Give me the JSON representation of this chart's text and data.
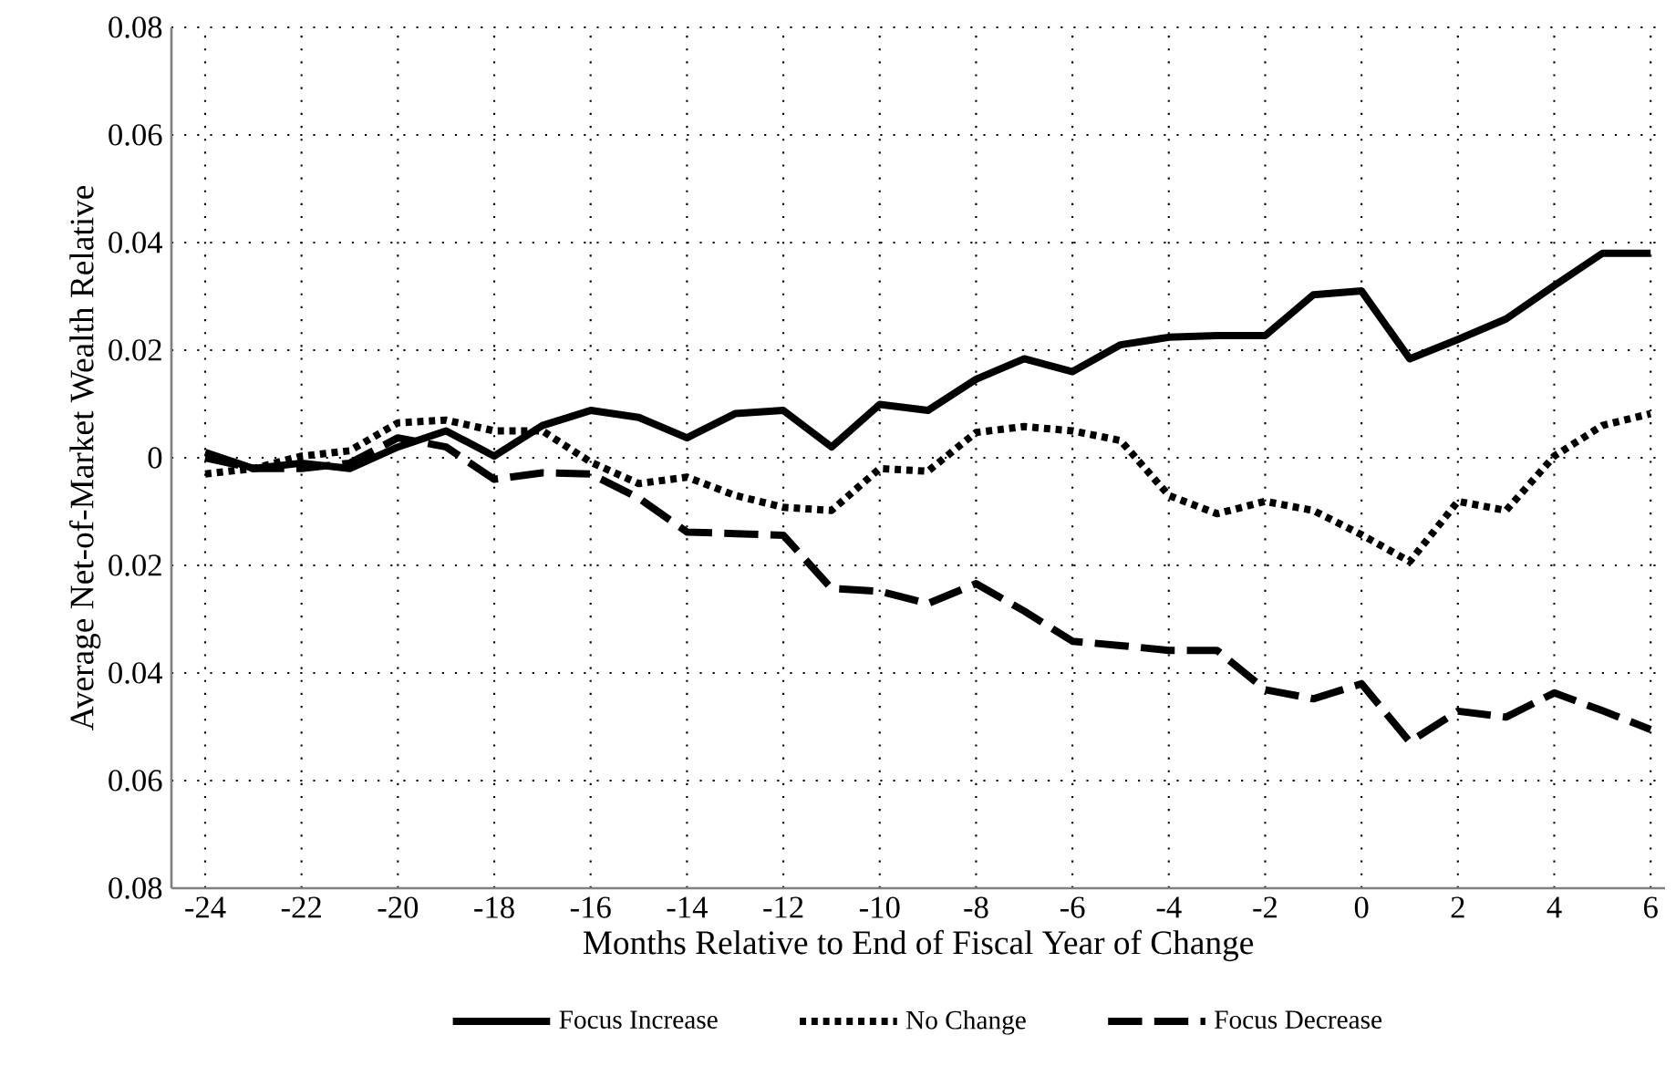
{
  "chart_data": {
    "type": "line",
    "xlabel": "Months Relative to End of Fiscal Year of Change",
    "ylabel": "Average Net-of-Market Wealth Relative",
    "x": [
      -24,
      -23,
      -22,
      -21,
      -20,
      -19,
      -18,
      -17,
      -16,
      -15,
      -14,
      -13,
      -12,
      -11,
      -10,
      -9,
      -8,
      -7,
      -6,
      -5,
      -4,
      -3,
      -2,
      -1,
      0,
      1,
      2,
      3,
      4,
      5,
      6
    ],
    "series": [
      {
        "name": "Focus Increase",
        "color": "#000000",
        "line_style": "solid",
        "values": [
          0.001,
          -0.002,
          -0.001,
          -0.002,
          0.002,
          0.005,
          0.0003,
          0.006,
          0.0088,
          0.0075,
          0.0037,
          0.0082,
          0.0088,
          0.002,
          0.0099,
          0.0088,
          0.0146,
          0.0184,
          0.016,
          0.021,
          0.0224,
          0.0227,
          0.0227,
          0.0303,
          0.031,
          0.0184,
          0.022,
          0.0258,
          0.032,
          0.038,
          0.038
        ]
      },
      {
        "name": "No Change",
        "color": "#000000",
        "line_style": "dotted",
        "values": [
          -0.003,
          -0.002,
          0.0003,
          0.0013,
          0.0065,
          0.007,
          0.005,
          0.005,
          -0.0008,
          -0.0048,
          -0.0036,
          -0.007,
          -0.0092,
          -0.0098,
          -0.002,
          -0.0025,
          0.0047,
          0.0058,
          0.005,
          0.0032,
          -0.007,
          -0.0104,
          -0.0081,
          -0.0098,
          -0.0143,
          -0.0193,
          -0.0081,
          -0.0098,
          0.0003,
          0.006,
          0.0082
        ]
      },
      {
        "name": "Focus Decrease",
        "color": "#000000",
        "line_style": "dashed",
        "values": [
          0.0,
          -0.002,
          -0.002,
          -0.001,
          0.0037,
          0.002,
          -0.004,
          -0.0028,
          -0.003,
          -0.0075,
          -0.0138,
          -0.0141,
          -0.0144,
          -0.0243,
          -0.0248,
          -0.0271,
          -0.0234,
          -0.0285,
          -0.0341,
          -0.0349,
          -0.0358,
          -0.0358,
          -0.0431,
          -0.0448,
          -0.042,
          -0.0528,
          -0.0471,
          -0.0482,
          -0.0437,
          -0.047,
          -0.0505
        ]
      }
    ],
    "xlim": [
      -24.7,
      6.3
    ],
    "ylim": [
      -0.08,
      0.08
    ],
    "xticks": [
      -24,
      -22,
      -20,
      -18,
      -16,
      -14,
      -12,
      -10,
      -8,
      -6,
      -4,
      -2,
      0,
      2,
      4,
      6
    ],
    "yticks": [
      {
        "value": -0.08,
        "label": "0.08"
      },
      {
        "value": -0.06,
        "label": "0.06"
      },
      {
        "value": -0.04,
        "label": "0.04"
      },
      {
        "value": -0.02,
        "label": "0.02"
      },
      0,
      0.02,
      0.04,
      0.06,
      0.08
    ],
    "grid": true,
    "legend": "bottom"
  }
}
